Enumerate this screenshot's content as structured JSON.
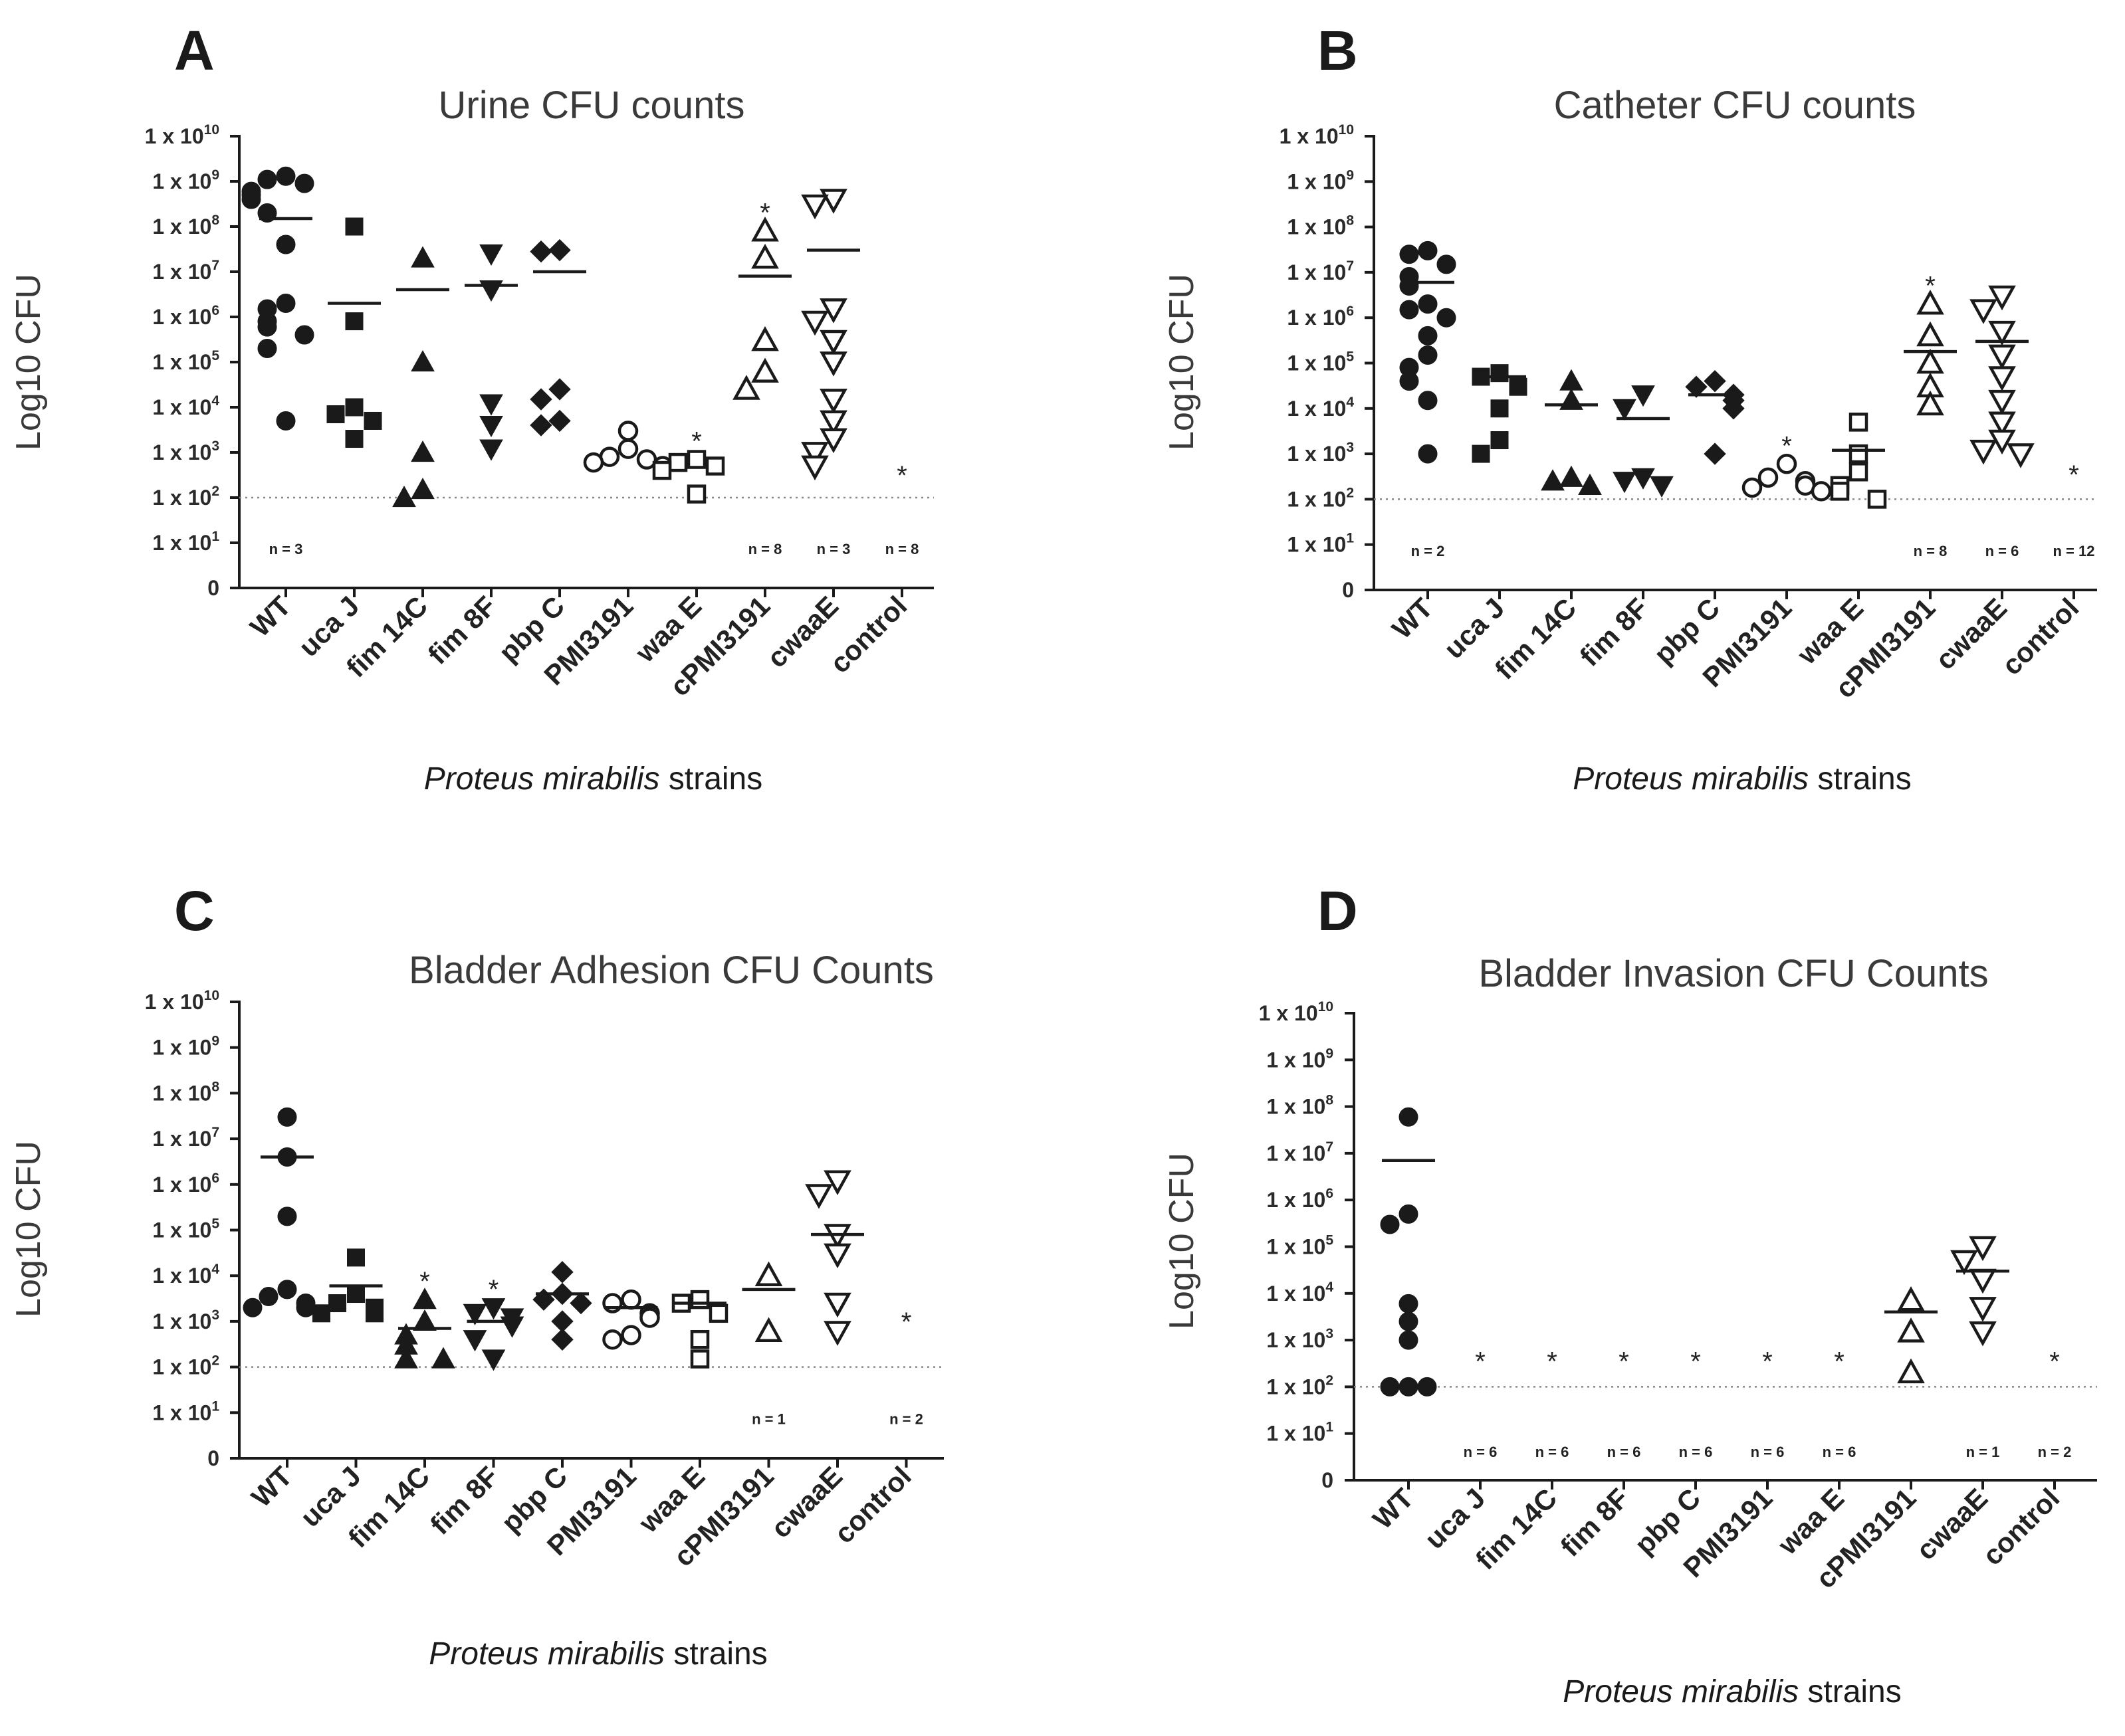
{
  "figure": {
    "xlabel_italic": "Proteus mirabilis",
    "xlabel_rest": " strains",
    "ylabel": "Log10 CFU",
    "ytick_prefix": "1 x 10",
    "zero_tick": "0",
    "detection_limit": 100
  },
  "colors": {
    "ink": "#1a1a1a",
    "grid_dotted": "#888888"
  },
  "chart_data": [
    {
      "type": "scatter",
      "panel": "A",
      "title": "Urine CFU counts",
      "categories": [
        "WT",
        "uca J",
        "fim 14C",
        "fim 8F",
        "pbp C",
        "PMI3191",
        "waa E",
        "cPMI3191",
        "cwaaE",
        "control"
      ],
      "marker": [
        "circle-filled",
        "square-filled",
        "triangle-filled",
        "invtriangle-filled",
        "diamond-filled",
        "circle-open",
        "square-open",
        "triangle-open",
        "invtriangle-open",
        "none"
      ],
      "ylim_log10": [
        0,
        10
      ],
      "points": [
        [
          1300000000.0,
          1100000000.0,
          900000000.0,
          600000000.0,
          500000000.0,
          400000000.0,
          200000000.0,
          40000000.0,
          2000000.0,
          1500000.0,
          800000.0,
          600000.0,
          400000.0,
          200000.0,
          5000.0
        ],
        [
          100000000.0,
          800000.0,
          10000.0,
          7000.0,
          5000.0,
          2000.0
        ],
        [
          20000000.0,
          100000.0,
          1000.0,
          150.0,
          100.0
        ],
        [
          25000000.0,
          4000000.0,
          12000.0,
          4000.0,
          1200.0
        ],
        [
          30000000.0,
          28000000.0,
          25000.0,
          15000.0,
          5000.0,
          4000.0
        ],
        [
          3000.0,
          1200.0,
          800.0,
          700.0,
          600.0,
          500.0
        ],
        [
          700.0,
          600.0,
          500.0,
          400.0,
          120.0
        ],
        [
          80000000.0,
          20000000.0,
          300000.0,
          60000.0,
          25000.0
        ],
        [
          400000000.0,
          300000000.0,
          1500000.0,
          800000.0,
          300000.0,
          100000.0,
          15000.0,
          5000.0,
          2000.0,
          1000.0,
          500.0
        ],
        []
      ],
      "means": [
        150000000.0,
        2000000.0,
        4000000.0,
        5000000.0,
        10000000.0,
        null,
        null,
        8000000.0,
        30000000.0,
        null
      ],
      "stars": [
        "",
        "",
        "",
        "",
        "",
        "",
        "*",
        "*",
        "",
        "*"
      ],
      "n_labels": [
        "n = 3",
        "",
        "",
        "",
        "",
        "",
        "",
        "n = 8",
        "n = 3",
        "n = 8"
      ]
    },
    {
      "type": "scatter",
      "panel": "B",
      "title": "Catheter CFU counts",
      "categories": [
        "WT",
        "uca J",
        "fim 14C",
        "fim 8F",
        "pbp C",
        "PMI3191",
        "waa E",
        "cPMI3191",
        "cwaaE",
        "control"
      ],
      "marker": [
        "circle-filled",
        "square-filled",
        "triangle-filled",
        "invtriangle-filled",
        "diamond-filled",
        "circle-open",
        "square-open",
        "triangle-open",
        "invtriangle-open",
        "none"
      ],
      "ylim_log10": [
        0,
        10
      ],
      "points": [
        [
          30000000.0,
          25000000.0,
          15000000.0,
          8000000.0,
          5000000.0,
          2000000.0,
          1500000.0,
          1000000.0,
          400000.0,
          150000.0,
          80000.0,
          40000.0,
          15000.0,
          1000.0
        ],
        [
          60000.0,
          50000.0,
          30000.0,
          10000.0,
          2000.0,
          1000.0
        ],
        [
          40000.0,
          15000.0,
          300.0,
          250.0,
          200.0
        ],
        [
          20000.0,
          10000.0,
          300.0,
          250.0,
          200.0
        ],
        [
          40000.0,
          30000.0,
          20000.0,
          15000.0,
          10000.0,
          1000.0
        ],
        [
          600.0,
          300.0,
          250.0,
          200.0,
          180.0,
          150.0
        ],
        [
          5000.0,
          1000.0,
          400.0,
          200.0,
          150.0,
          100.0
        ],
        [
          2000000.0,
          400000.0,
          100000.0,
          30000.0,
          12000.0
        ],
        [
          3000000.0,
          1500000.0,
          500000.0,
          150000.0,
          50000.0,
          15000.0,
          5000.0,
          2000.0,
          1200.0,
          1000.0
        ],
        []
      ],
      "means": [
        6000000.0,
        50000.0,
        12000.0,
        6000.0,
        20000.0,
        null,
        1200.0,
        180000.0,
        300000.0,
        null
      ],
      "stars": [
        "",
        "",
        "",
        "",
        "",
        "*",
        "",
        "*",
        "",
        "*"
      ],
      "n_labels": [
        "n = 2",
        "",
        "",
        "",
        "",
        "",
        "",
        "n = 8",
        "n = 6",
        "n = 12"
      ]
    },
    {
      "type": "scatter",
      "panel": "C",
      "title": "Bladder Adhesion CFU Counts",
      "categories": [
        "WT",
        "uca J",
        "fim 14C",
        "fim 8F",
        "pbp C",
        "PMI3191",
        "waa E",
        "cPMI3191",
        "cwaaE",
        "control"
      ],
      "marker": [
        "circle-filled",
        "square-filled",
        "triangle-filled",
        "invtriangle-filled",
        "diamond-filled",
        "circle-open",
        "square-open",
        "triangle-open",
        "invtriangle-open",
        "none"
      ],
      "ylim_log10": [
        0,
        10
      ],
      "points": [
        [
          30000000.0,
          4000000.0,
          200000.0,
          5000.0,
          3500.0,
          2500.0,
          2000.0,
          2000.0
        ],
        [
          25000.0,
          4000.0,
          2500.0,
          2000.0,
          1500.0,
          1500.0
        ],
        [
          3000.0,
          1000.0,
          500.0,
          300.0,
          150.0,
          150.0
        ],
        [
          2000.0,
          1500.0,
          1200.0,
          800.0,
          400.0,
          150.0
        ],
        [
          12000.0,
          4000.0,
          3000.0,
          2500.0,
          1000.0,
          400.0
        ],
        [
          3000.0,
          2500.0,
          1500.0,
          1200.0,
          500.0,
          400.0
        ],
        [
          3000.0,
          2500.0,
          1500.0,
          400.0,
          150.0
        ],
        [
          10000.0,
          600.0
        ],
        [
          1200000.0,
          600000.0,
          80000.0,
          30000.0,
          2500.0,
          600.0
        ],
        []
      ],
      "means": [
        4000000.0,
        6000.0,
        700.0,
        1000.0,
        4000.0,
        2000.0,
        2500.0,
        5000.0,
        80000.0,
        null
      ],
      "stars": [
        "",
        "",
        "*",
        "*",
        "",
        "",
        "",
        "",
        "",
        "*"
      ],
      "n_labels": [
        "",
        "",
        "",
        "",
        "",
        "",
        "",
        "n = 1",
        "",
        "n = 2"
      ]
    },
    {
      "type": "scatter",
      "panel": "D",
      "title": "Bladder Invasion CFU Counts",
      "categories": [
        "WT",
        "uca J",
        "fim 14C",
        "fim 8F",
        "pbp C",
        "PMI3191",
        "waa E",
        "cPMI3191",
        "cwaaE",
        "control"
      ],
      "marker": [
        "circle-filled",
        "square-filled",
        "triangle-filled",
        "invtriangle-filled",
        "diamond-filled",
        "circle-open",
        "square-open",
        "triangle-open",
        "invtriangle-open",
        "none"
      ],
      "ylim_log10": [
        0,
        10
      ],
      "points": [
        [
          60000000.0,
          500000.0,
          300000.0,
          6000.0,
          2500.0,
          1000.0,
          100.0,
          100.0,
          100.0
        ],
        [],
        [],
        [],
        [],
        [],
        [],
        [
          7000.0,
          1500.0,
          200.0
        ],
        [
          100000.0,
          50000.0,
          20000.0,
          5000.0,
          1500.0
        ],
        []
      ],
      "means": [
        7000000.0,
        null,
        null,
        null,
        null,
        null,
        null,
        4000.0,
        30000.0,
        null
      ],
      "stars": [
        "",
        "*",
        "*",
        "*",
        "*",
        "*",
        "*",
        "",
        "",
        "*"
      ],
      "n_labels": [
        "",
        "n = 6",
        "n = 6",
        "n = 6",
        "n = 6",
        "n = 6",
        "n = 6",
        "",
        "n = 1",
        "n = 2"
      ]
    }
  ]
}
